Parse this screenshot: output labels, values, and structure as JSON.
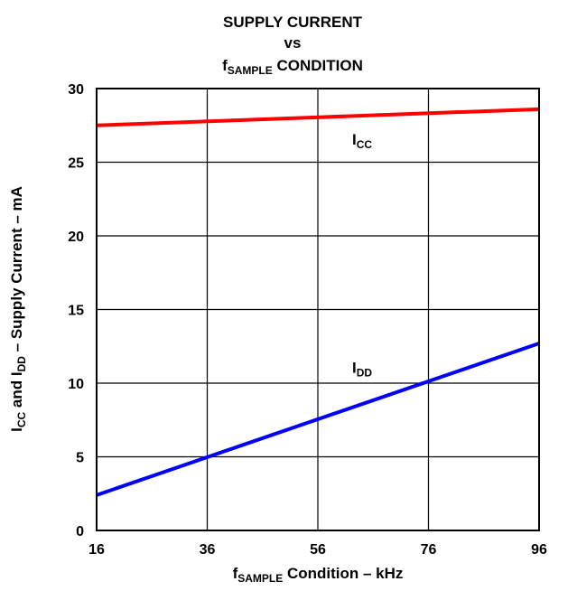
{
  "chart_data": {
    "type": "line",
    "title": {
      "line1": "SUPPLY CURRENT",
      "line2": "vs",
      "line3_pre": "f",
      "line3_sub": "SAMPLE",
      "line3_post": " CONDITION"
    },
    "xlabel": {
      "pre": "f",
      "sub": "SAMPLE",
      "post": " Condition – kHz"
    },
    "ylabel": {
      "p1": "I",
      "s1": "CC",
      "p2": " and I",
      "s2": "DD",
      "p3": " – Supply Current – mA"
    },
    "xlim": [
      16,
      96
    ],
    "ylim": [
      0,
      30
    ],
    "x_ticks": [
      16,
      36,
      56,
      76,
      96
    ],
    "y_ticks": [
      0,
      5,
      10,
      15,
      20,
      25,
      30
    ],
    "grid": true,
    "series": [
      {
        "name": "I",
        "name_sub": "CC",
        "color": "#ff0000",
        "x": [
          16,
          96
        ],
        "y": [
          27.5,
          28.6
        ]
      },
      {
        "name": "I",
        "name_sub": "DD",
        "color": "#0000ff",
        "x": [
          16,
          96
        ],
        "y": [
          2.4,
          12.7
        ]
      }
    ],
    "annotations": [
      {
        "series_index": 0,
        "x": 64,
        "y": 26.2
      },
      {
        "series_index": 1,
        "x": 64,
        "y": 10.7
      }
    ]
  }
}
